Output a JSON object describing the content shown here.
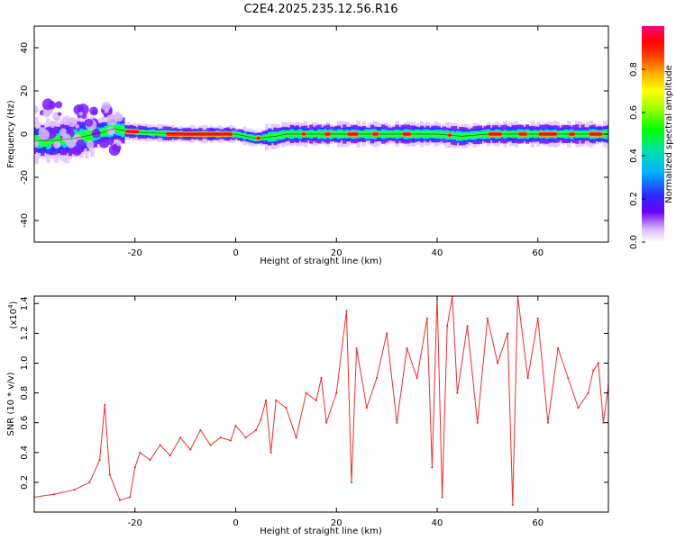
{
  "figure": {
    "title": "C2E4.2025.235.12.56.R16"
  },
  "chart_data": [
    {
      "type": "heatmap",
      "title": "C2E4.2025.235.12.56.R16",
      "xlabel": "Height of straight line (km)",
      "ylabel": "Frequency (Hz)",
      "xlim": [
        -40,
        74
      ],
      "ylim": [
        -50,
        50
      ],
      "xticks": [
        -20,
        0,
        20,
        40,
        60
      ],
      "xtick_labels": [
        "-20",
        "0",
        "20",
        "40",
        "60"
      ],
      "yticks": [
        -40,
        -20,
        0,
        20,
        40
      ],
      "ytick_labels": [
        "-40",
        "-20",
        "0",
        "20",
        "40"
      ],
      "ridge_frequency": [
        [
          -40,
          -3
        ],
        [
          -36,
          -3
        ],
        [
          -32,
          -2
        ],
        [
          -30,
          -1
        ],
        [
          -28,
          0
        ],
        [
          -26,
          1
        ],
        [
          -25,
          2
        ],
        [
          -24,
          2.5
        ],
        [
          -22,
          1.5
        ],
        [
          -20,
          1
        ],
        [
          -16,
          0.5
        ],
        [
          -10,
          0
        ],
        [
          0,
          0
        ],
        [
          2,
          -1
        ],
        [
          4,
          -2
        ],
        [
          6,
          -1.5
        ],
        [
          8,
          -1
        ],
        [
          10,
          0
        ],
        [
          20,
          0
        ],
        [
          30,
          0
        ],
        [
          40,
          0
        ],
        [
          45,
          -1
        ],
        [
          50,
          0
        ],
        [
          60,
          0
        ],
        [
          74,
          0
        ]
      ],
      "colorbar": {
        "label": "Normalized spectral amplitude",
        "range": [
          0,
          1
        ],
        "ticks": [
          0.0,
          0.2,
          0.4,
          0.6,
          0.8
        ],
        "tick_labels": [
          "0.0",
          "0.2",
          "0.4",
          "0.6",
          "0.8"
        ]
      }
    },
    {
      "type": "line",
      "xlabel": "Height of straight line (km)",
      "ylabel": "SNR (10 * v/v)",
      "y_multiplier_label": "(x10",
      "y_multiplier_exponent": "4",
      "y_multiplier_close": ")",
      "xlim": [
        -40,
        74
      ],
      "ylim": [
        0,
        1.45
      ],
      "xticks": [
        -20,
        0,
        20,
        40,
        60
      ],
      "xtick_labels": [
        "-20",
        "0",
        "20",
        "40",
        "60"
      ],
      "yticks": [
        0.2,
        0.4,
        0.6,
        0.8,
        1.0,
        1.2,
        1.4
      ],
      "ytick_labels": [
        "0.2",
        "0.4",
        "0.6",
        "0.8",
        "1.0",
        "1.2",
        "1.4"
      ],
      "color": "#e8302e",
      "series": [
        {
          "x": [
            -40,
            -36,
            -32,
            -29,
            -27,
            -26,
            -25,
            -23,
            -21,
            -20,
            -19,
            -17,
            -15,
            -13,
            -11,
            -9,
            -7,
            -5,
            -3,
            -1,
            0,
            2,
            4,
            5,
            6,
            7,
            8,
            10,
            12,
            14,
            16,
            17,
            18,
            20,
            22,
            23,
            24,
            26,
            28,
            30,
            32,
            34,
            36,
            38,
            39,
            40,
            41,
            42,
            43,
            44,
            46,
            48,
            50,
            52,
            54,
            55,
            56,
            58,
            60,
            62,
            64,
            66,
            68,
            70,
            71,
            72,
            73,
            74
          ],
          "y": [
            0.1,
            0.12,
            0.15,
            0.2,
            0.35,
            0.72,
            0.25,
            0.08,
            0.1,
            0.3,
            0.4,
            0.35,
            0.45,
            0.38,
            0.5,
            0.42,
            0.55,
            0.45,
            0.5,
            0.48,
            0.58,
            0.5,
            0.55,
            0.62,
            0.75,
            0.4,
            0.75,
            0.7,
            0.5,
            0.8,
            0.75,
            0.9,
            0.6,
            0.8,
            1.35,
            0.2,
            1.1,
            0.7,
            0.9,
            1.2,
            0.6,
            1.1,
            0.9,
            1.3,
            0.3,
            1.45,
            0.1,
            1.25,
            1.45,
            0.8,
            1.25,
            0.6,
            1.3,
            1.0,
            1.2,
            0.05,
            1.45,
            0.9,
            1.3,
            0.6,
            1.1,
            0.9,
            0.7,
            0.8,
            0.95,
            1.0,
            0.6,
            0.85
          ]
        }
      ]
    }
  ]
}
